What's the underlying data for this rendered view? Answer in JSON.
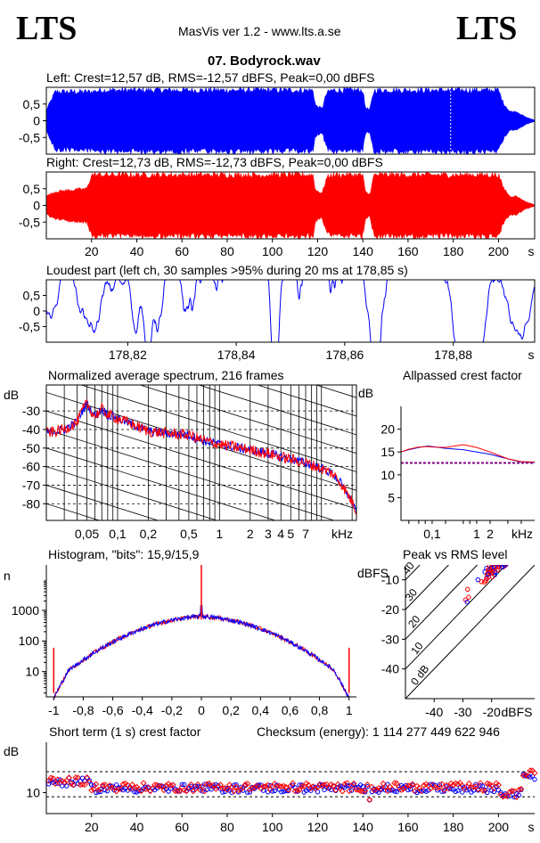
{
  "header": {
    "logo_left": "LTS",
    "logo_right": "LTS",
    "app_title": "MasVis ver 1.2 - www.lts.a.se",
    "file_title": "07. Bodyrock.wav"
  },
  "colors": {
    "left": "#0000ff",
    "right": "#ff0000",
    "axis": "#000000",
    "mean": "#800080"
  },
  "chart_data": [
    {
      "id": "left",
      "type": "area",
      "title": "Left: Crest=12,57 dB, RMS=-12,57 dBFS, Peak=0,00 dBFS",
      "yticks": [
        "0,5",
        "0",
        "-0,5"
      ],
      "ylim": [
        -1,
        1
      ],
      "xlim": [
        0,
        216
      ],
      "envelope": {
        "x": [
          0,
          4,
          10,
          20,
          24,
          30,
          40,
          50,
          60,
          70,
          80,
          90,
          100,
          110,
          118,
          119,
          122,
          124,
          126,
          140,
          141,
          143,
          145,
          158,
          160,
          170,
          180,
          190,
          200,
          202,
          205,
          208,
          212,
          216
        ],
        "peak": [
          0.35,
          0.95,
          0.95,
          0.95,
          1,
          1,
          1,
          1,
          1,
          1,
          1,
          1,
          1,
          1,
          1,
          0.5,
          0.4,
          0.9,
          1,
          1,
          0.45,
          0.35,
          1,
          1,
          1,
          1,
          1,
          1,
          1,
          0.6,
          0.3,
          0.3,
          0.12,
          0.02
        ]
      },
      "marker_x": 178.85
    },
    {
      "id": "right",
      "type": "area",
      "title": "Right: Crest=12,73 dB, RMS=-12,73 dBFS, Peak=0,00 dBFS",
      "yticks": [
        "0,5",
        "0",
        "-0,5"
      ],
      "ylim": [
        -1,
        1
      ],
      "xlim": [
        0,
        216
      ],
      "xticks": [
        "20",
        "40",
        "60",
        "80",
        "100",
        "120",
        "140",
        "160",
        "180",
        "200"
      ],
      "xtick_values": [
        20,
        40,
        60,
        80,
        100,
        120,
        140,
        160,
        180,
        200
      ],
      "xunit": "s",
      "envelope": {
        "x": [
          0,
          4,
          10,
          18,
          20,
          24,
          30,
          60,
          90,
          110,
          118,
          119,
          122,
          124,
          126,
          140,
          141,
          143,
          145,
          158,
          160,
          190,
          200,
          202,
          205,
          208,
          212,
          216
        ],
        "peak": [
          0.3,
          0.45,
          0.5,
          0.55,
          1,
          1,
          1,
          1,
          1,
          1,
          1,
          0.5,
          0.4,
          0.9,
          1,
          1,
          0.45,
          0.35,
          1,
          1,
          1,
          1,
          1,
          0.6,
          0.3,
          0.3,
          0.12,
          0.02
        ]
      }
    },
    {
      "id": "loudest",
      "type": "line",
      "title": "Loudest part (left  ch, 30 samples >95% during 20 ms at 178,85 s)",
      "yticks": [
        "0,5",
        "0",
        "-0,5"
      ],
      "ylim": [
        -1,
        1
      ],
      "xlim": [
        178.805,
        178.895
      ],
      "xticks": [
        "178,82",
        "178,84",
        "178,86",
        "178,88"
      ],
      "xtick_values": [
        178.82,
        178.84,
        178.86,
        178.88
      ],
      "xunit": "s"
    },
    {
      "id": "spectrum",
      "type": "line",
      "title": "Normalized average spectrum, 216 frames",
      "ylabel": "dB",
      "yticks": [
        "-30",
        "-40",
        "-50",
        "-60",
        "-70",
        "-80"
      ],
      "ytick_values": [
        -30,
        -40,
        -50,
        -60,
        -70,
        -80
      ],
      "ylim": [
        -89,
        -16
      ],
      "xlim_hz": [
        20,
        22050
      ],
      "xticks": [
        "0,05",
        "0,1",
        "0,2",
        "0,5",
        "1",
        "2",
        "3",
        "4",
        "5",
        "7"
      ],
      "xtick_khz": [
        0.05,
        0.1,
        0.2,
        0.5,
        1,
        2,
        3,
        4,
        5,
        7
      ],
      "xunit": "kHz",
      "curve": {
        "f_hz": [
          20,
          30,
          40,
          45,
          50,
          55,
          60,
          70,
          80,
          100,
          150,
          200,
          300,
          500,
          700,
          1000,
          2000,
          3000,
          5000,
          7000,
          10000,
          13000,
          16000,
          20000,
          22050
        ],
        "db": [
          -42,
          -40,
          -36,
          -30,
          -26,
          -30,
          -33,
          -29,
          -32,
          -34,
          -38,
          -41,
          -42,
          -43,
          -46,
          -48,
          -51,
          -53,
          -56,
          -58,
          -61,
          -64,
          -70,
          -79,
          -84
        ]
      }
    },
    {
      "id": "allpassed",
      "type": "line",
      "title": "Allpassed crest factor",
      "ylabel": "dB",
      "yticks": [
        "20",
        "15",
        "10",
        "5"
      ],
      "ytick_values": [
        20,
        15,
        10,
        5
      ],
      "ylim": [
        0,
        25
      ],
      "xticks": [
        "0,1",
        "1",
        "2"
      ],
      "xtick_khz": [
        0.1,
        1,
        2
      ],
      "xunit": "kHz",
      "series": [
        {
          "color": "#0000ff",
          "x_khz": [
            0.02,
            0.03,
            0.05,
            0.08,
            0.1,
            0.2,
            0.5,
            1,
            2,
            5,
            10,
            20
          ],
          "db": [
            15,
            15.5,
            16,
            16.3,
            16.2,
            15.8,
            15.5,
            15,
            14.5,
            13.5,
            12.8,
            12.7
          ]
        },
        {
          "color": "#ff0000",
          "x_khz": [
            0.02,
            0.03,
            0.05,
            0.08,
            0.1,
            0.2,
            0.5,
            1,
            2,
            5,
            10,
            20
          ],
          "db": [
            15,
            15.6,
            16.1,
            16.2,
            16.1,
            16,
            16.6,
            16,
            15,
            13.5,
            12.9,
            12.8
          ]
        }
      ],
      "reference_db": 12.6
    },
    {
      "id": "histogram",
      "type": "line",
      "title": "Histogram, \"bits\": 15,9/15,9",
      "ylabel": "n",
      "yticks": [
        "1000",
        "100",
        "10"
      ],
      "ytick_values": [
        1000,
        100,
        10
      ],
      "ylim_log": [
        1.5,
        30000
      ],
      "xlim": [
        -1.05,
        1.05
      ],
      "xticks": [
        "-1",
        "-0,8",
        "-0,6",
        "-0,4",
        "-0,2",
        "0",
        "0,2",
        "0,4",
        "0,6",
        "0,8",
        "1"
      ],
      "xtick_values": [
        -1,
        -0.8,
        -0.6,
        -0.4,
        -0.2,
        0,
        0.2,
        0.4,
        0.6,
        0.8,
        1
      ]
    },
    {
      "id": "peak_rms",
      "type": "scatter",
      "title": "Peak vs RMS level",
      "ylabel": "dBFS",
      "yticks": [
        "-10",
        "-20",
        "-30",
        "-40"
      ],
      "ytick_values": [
        -10,
        -20,
        -30,
        -40
      ],
      "xticks": [
        "-40",
        "-30",
        "-20"
      ],
      "xtick_values": [
        -40,
        -30,
        -20
      ],
      "xunit": "dBFS",
      "xlim": [
        -50,
        -5
      ],
      "ylim": [
        -50,
        -5
      ],
      "crest_lines": [
        "0 dB",
        "10",
        "20",
        "30",
        "40"
      ],
      "crest_values": [
        0,
        10,
        20,
        30,
        40
      ]
    },
    {
      "id": "short_term",
      "type": "scatter",
      "title": "Short term (1 s) crest factor",
      "checksum_label": "Checksum (energy):  1 114 277 449 622 946",
      "ylabel": "dB",
      "yticks": [
        "10"
      ],
      "ytick_values": [
        10
      ],
      "ylim": [
        5,
        22
      ],
      "xlim": [
        0,
        216
      ],
      "xticks": [
        "20",
        "40",
        "60",
        "80",
        "100",
        "120",
        "140",
        "160",
        "180",
        "200"
      ],
      "xtick_values": [
        20,
        40,
        60,
        80,
        100,
        120,
        140,
        160,
        180,
        200
      ],
      "xunit": "s",
      "guide_db": [
        15,
        9
      ]
    }
  ]
}
